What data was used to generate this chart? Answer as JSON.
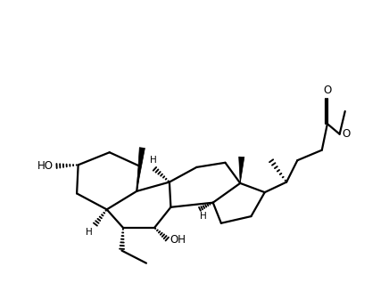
{
  "bg_color": "#ffffff",
  "line_color": "#000000",
  "line_width": 1.6,
  "figsize": [
    4.36,
    3.36
  ],
  "dpi": 100,
  "xlim": [
    0,
    436
  ],
  "ylim": [
    0,
    336
  ]
}
